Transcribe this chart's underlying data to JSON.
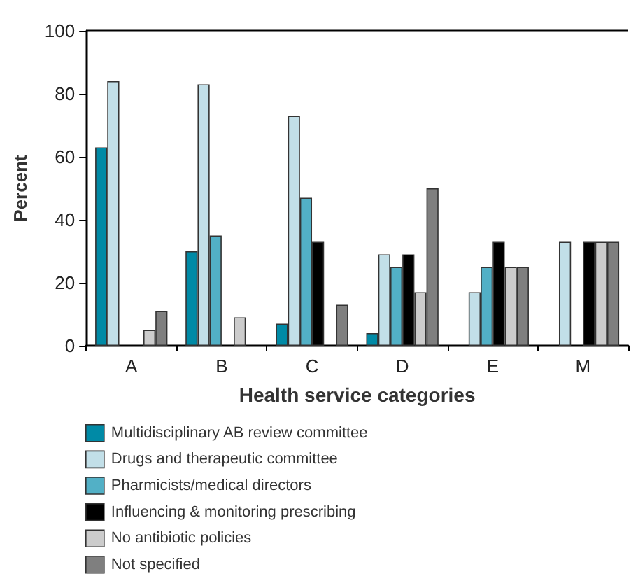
{
  "chart_data": {
    "type": "bar",
    "xlabel": "Health service categories",
    "ylabel": "Percent",
    "categories": [
      "A",
      "B",
      "C",
      "D",
      "E",
      "M"
    ],
    "series": [
      {
        "name": "Multidisciplinary AB review committee",
        "color": "#008aa6",
        "values": [
          63,
          30,
          7,
          4,
          0,
          0
        ]
      },
      {
        "name": "Drugs and therapeutic committee",
        "color": "#c2dfe8",
        "values": [
          84,
          83,
          73,
          29,
          17,
          33
        ]
      },
      {
        "name": "Pharmicists/medical directors",
        "color": "#52b0c6",
        "values": [
          0,
          35,
          47,
          25,
          25,
          0
        ]
      },
      {
        "name": "Influencing & monitoring prescribing",
        "color": "#000000",
        "values": [
          0,
          0,
          33,
          29,
          33,
          33
        ]
      },
      {
        "name": "No antibiotic policies",
        "color": "#cccccc",
        "values": [
          5,
          9,
          0,
          17,
          25,
          33
        ]
      },
      {
        "name": "Not specified",
        "color": "#7f7f7f",
        "values": [
          11,
          0,
          13,
          50,
          25,
          33
        ]
      }
    ],
    "ylim": [
      0,
      100
    ],
    "yticks": [
      0,
      20,
      40,
      60,
      80,
      100
    ],
    "grid": false,
    "legend": "bottom"
  }
}
